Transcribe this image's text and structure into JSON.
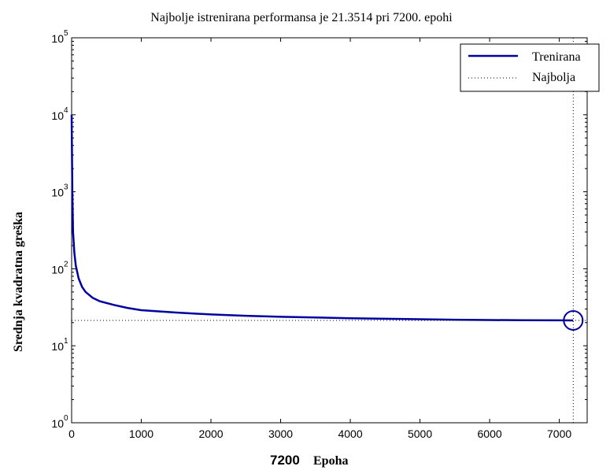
{
  "chart_data": {
    "type": "line",
    "title": "Najbolje istrenirana performansa je 21.3514 pri 7200. epohi",
    "ylabel": "Srednja kvadratna greška",
    "xlabel": "Epoha",
    "xlabel_prefix": "7200",
    "y_scale": "log",
    "xlim": [
      0,
      7400
    ],
    "ylim": [
      1,
      100000
    ],
    "x_ticks": [
      "0",
      "1000",
      "2000",
      "3000",
      "4000",
      "5000",
      "6000",
      "7000"
    ],
    "y_ticks": [
      {
        "base": "10",
        "exp": "0"
      },
      {
        "base": "10",
        "exp": "1"
      },
      {
        "base": "10",
        "exp": "2"
      },
      {
        "base": "10",
        "exp": "3"
      },
      {
        "base": "10",
        "exp": "4"
      },
      {
        "base": "10",
        "exp": "5"
      }
    ],
    "grid": false,
    "legend_position": "top-right",
    "series": [
      {
        "name": "Trenirana",
        "color": "#0000a0",
        "style": "solid",
        "x": [
          0,
          10,
          20,
          40,
          60,
          100,
          150,
          200,
          300,
          400,
          600,
          800,
          1000,
          1500,
          2000,
          2500,
          3000,
          3500,
          4000,
          4500,
          5000,
          5500,
          6000,
          6500,
          7000,
          7200
        ],
        "y": [
          10000,
          1000,
          300,
          160,
          110,
          75,
          58,
          50,
          42,
          38,
          34,
          31,
          29,
          27,
          25.5,
          24.5,
          23.8,
          23.3,
          22.8,
          22.4,
          22.1,
          21.8,
          21.6,
          21.5,
          21.4,
          21.3514
        ]
      },
      {
        "name": "Najbolja",
        "color": "#000000",
        "style": "dotted",
        "best_x": 7200,
        "best_y": 21.3514
      }
    ],
    "best_point": {
      "x": 7200,
      "y": 21.3514,
      "marker": "circle"
    }
  }
}
